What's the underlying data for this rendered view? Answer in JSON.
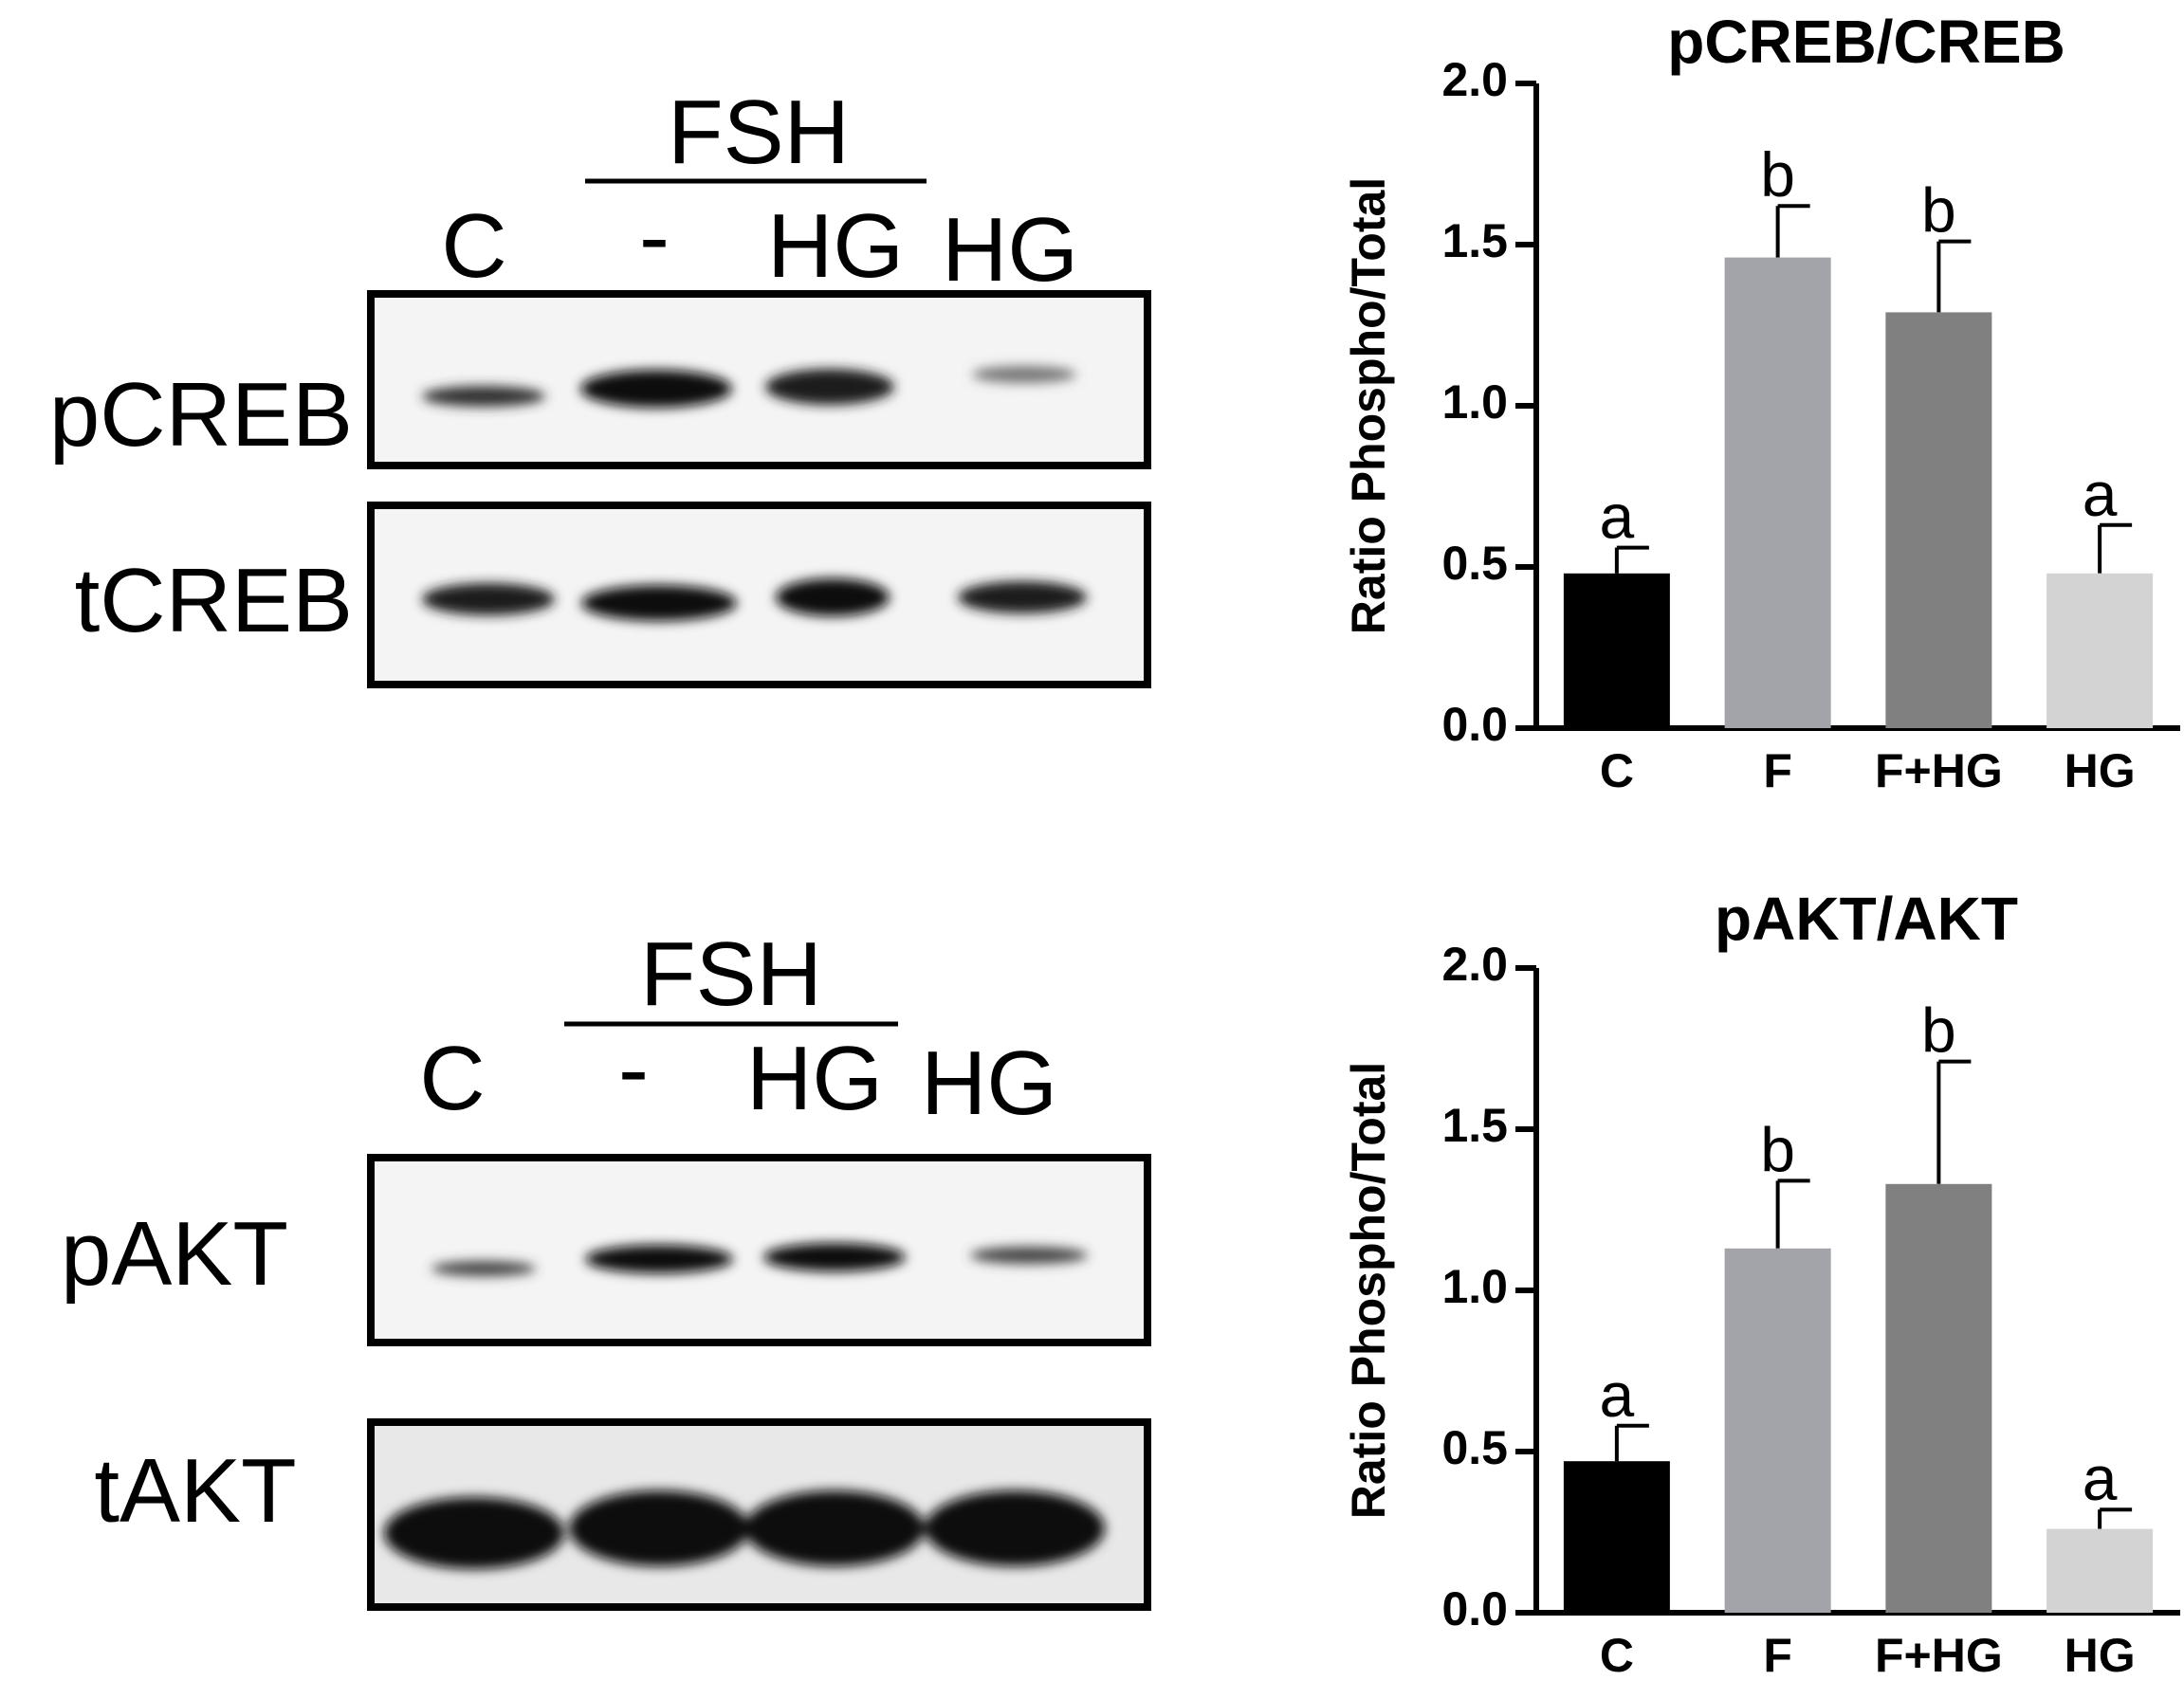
{
  "blots": [
    {
      "group_label": "FSH",
      "lanes": [
        "C",
        "-",
        "HG",
        "HG"
      ],
      "rows": [
        "pCREB",
        "tCREB"
      ]
    },
    {
      "group_label": "FSH",
      "lanes": [
        "C",
        "-",
        "HG",
        "HG"
      ],
      "rows": [
        "pAKT",
        "tAKT"
      ]
    }
  ],
  "chart_data": [
    {
      "type": "bar",
      "title": "pCREB/CREB",
      "y_label": "Ratio Phospho/Total",
      "categories": [
        "C",
        "F",
        "F+HG",
        "HG"
      ],
      "values": [
        0.48,
        1.46,
        1.29,
        0.48
      ],
      "errors": [
        0.08,
        0.16,
        0.22,
        0.15
      ],
      "annotations": [
        "a",
        "b",
        "b",
        "a"
      ],
      "colors": [
        "#000000",
        "#a3a3aa",
        "#808080",
        "#d3d3d3"
      ],
      "ylim": [
        0,
        2
      ],
      "yticks": [
        {
          "value": 0,
          "label": "0.0"
        },
        0.5,
        {
          "value": 1,
          "label": "1.0"
        },
        1.5,
        {
          "value": 2,
          "label": "2.0"
        }
      ]
    },
    {
      "type": "bar",
      "title": "pAKT/AKT",
      "y_label": "Ratio Phospho/Total",
      "categories": [
        "C",
        "F",
        "F+HG",
        "HG"
      ],
      "values": [
        0.47,
        1.13,
        1.33,
        0.26
      ],
      "errors": [
        0.11,
        0.21,
        0.38,
        0.06
      ],
      "annotations": [
        "a",
        "b",
        "b",
        "a"
      ],
      "colors": [
        "#000000",
        "#a3a3aa",
        "#808080",
        "#d3d3d3"
      ],
      "ylim": [
        0,
        2
      ],
      "yticks": [
        {
          "value": 0,
          "label": "0.0"
        },
        0.5,
        {
          "value": 1,
          "label": "1.0"
        },
        1.5,
        {
          "value": 2,
          "label": "2.0"
        }
      ]
    }
  ]
}
